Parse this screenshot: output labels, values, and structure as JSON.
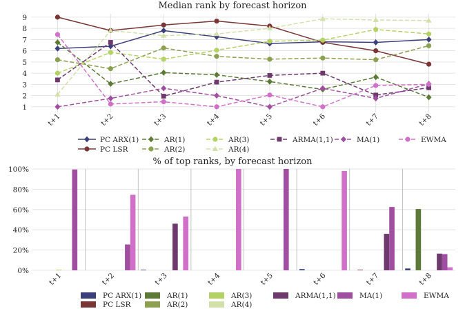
{
  "chart_data": [
    {
      "type": "line",
      "title": "Median rank by forecast horizon",
      "xlabel": "",
      "ylabel": "",
      "categories": [
        "t+1",
        "t+2",
        "t+3",
        "t+4",
        "t+5",
        "t+6",
        "t+7",
        "t+8"
      ],
      "ylim": [
        0.5,
        9.3
      ],
      "yticks": [
        1,
        2,
        3,
        4,
        5,
        6,
        7,
        8,
        9
      ],
      "grid": true,
      "legend_position": "bottom",
      "series": [
        {
          "key": "pc-arx1",
          "name": "PC ARX(1)",
          "color": "#3b3f7a",
          "dash": "",
          "marker": "diamond",
          "values": [
            6.2,
            6.4,
            7.8,
            7.25,
            6.65,
            6.8,
            6.75,
            7.0
          ]
        },
        {
          "key": "pc-lsr",
          "name": "PC LSR",
          "color": "#7a3535",
          "dash": "",
          "marker": "circle",
          "values": [
            9.0,
            7.8,
            8.3,
            8.65,
            8.2,
            6.75,
            6.0,
            4.8
          ]
        },
        {
          "key": "ar1",
          "name": "AR(1)",
          "color": "#5c7a35",
          "dash": "6,3",
          "marker": "diamond",
          "values": [
            6.75,
            3.05,
            4.05,
            3.85,
            3.25,
            2.55,
            3.65,
            1.85
          ]
        },
        {
          "key": "ar2",
          "name": "AR(2)",
          "color": "#8ca050",
          "dash": "6,3",
          "marker": "circle",
          "values": [
            5.2,
            4.4,
            6.25,
            5.5,
            5.25,
            5.35,
            5.2,
            6.45
          ]
        },
        {
          "key": "ar3",
          "name": "AR(3)",
          "color": "#b4d264",
          "dash": "6,3",
          "marker": "circle",
          "values": [
            4.0,
            5.85,
            5.25,
            6.05,
            6.85,
            6.95,
            7.9,
            7.5
          ]
        },
        {
          "key": "ar4",
          "name": "AR(4)",
          "color": "#d2e0aa",
          "dash": "6,3",
          "marker": "triangle",
          "values": [
            2.1,
            7.8,
            7.35,
            7.5,
            8.0,
            8.85,
            8.75,
            8.7
          ]
        },
        {
          "key": "arma11",
          "name": "ARMA(1,1)",
          "color": "#6e3a6e",
          "dash": "6,3",
          "marker": "square",
          "values": [
            3.4,
            6.75,
            1.95,
            3.2,
            3.8,
            4.0,
            2.05,
            2.7
          ]
        },
        {
          "key": "ma1",
          "name": "MA(1)",
          "color": "#a04fa0",
          "dash": "6,3",
          "marker": "diamond",
          "values": [
            1.0,
            1.75,
            2.65,
            2.0,
            1.0,
            2.65,
            1.75,
            3.05
          ]
        },
        {
          "key": "ewma",
          "name": "EWMA",
          "color": "#d070c8",
          "dash": "6,3",
          "marker": "circle",
          "values": [
            7.45,
            1.25,
            1.45,
            1.0,
            2.05,
            1.0,
            2.9,
            3.0
          ]
        }
      ]
    },
    {
      "type": "bar",
      "title": "% of top ranks, by forecast horizon",
      "xlabel": "",
      "ylabel": "",
      "categories": [
        "t+1",
        "t+2",
        "t+3",
        "t+4",
        "t+5",
        "t+6",
        "t+7",
        "t+8"
      ],
      "ylim": [
        0,
        100
      ],
      "yticks": [
        0,
        20,
        40,
        60,
        80,
        100
      ],
      "ytick_labels": [
        "0%",
        "20%",
        "40%",
        "60%",
        "80%",
        "100%"
      ],
      "grid": true,
      "legend_position": "bottom",
      "series": [
        {
          "key": "pc-arx1",
          "name": "PC ARX(1)",
          "color": "#3b3f7a",
          "values": [
            0,
            0,
            0.6,
            0,
            0,
            1.2,
            0,
            1.8
          ]
        },
        {
          "key": "pc-lsr",
          "name": "PC LSR",
          "color": "#7a3535",
          "values": [
            0,
            0,
            0,
            0,
            0,
            0,
            0.6,
            0
          ]
        },
        {
          "key": "ar1",
          "name": "AR(1)",
          "color": "#5c7a35",
          "values": [
            0,
            0,
            0,
            0,
            0,
            0,
            0,
            60.5
          ]
        },
        {
          "key": "ar2",
          "name": "AR(2)",
          "color": "#8ca050",
          "values": [
            0,
            0,
            0,
            0,
            0,
            0,
            0,
            0
          ]
        },
        {
          "key": "ar3",
          "name": "AR(3)",
          "color": "#b4d264",
          "values": [
            0.6,
            0,
            0,
            0,
            0,
            0,
            0,
            0
          ]
        },
        {
          "key": "ar4",
          "name": "AR(4)",
          "color": "#d2e0aa",
          "values": [
            0,
            0,
            0,
            0,
            0,
            0,
            0,
            0
          ]
        },
        {
          "key": "arma11",
          "name": "ARMA(1,1)",
          "color": "#6e3a6e",
          "values": [
            0,
            0,
            46.0,
            0,
            0,
            0,
            36.0,
            16.5
          ]
        },
        {
          "key": "ma1",
          "name": "MA(1)",
          "color": "#a04fa0",
          "values": [
            99.5,
            25.5,
            0,
            0,
            100,
            0,
            62.5,
            16.0
          ]
        },
        {
          "key": "ewma",
          "name": "EWMA",
          "color": "#d070c8",
          "values": [
            0,
            74.5,
            53.0,
            100,
            0,
            98.0,
            0,
            3.0
          ]
        }
      ]
    }
  ],
  "legend_order": [
    "pc-arx1",
    "ar1",
    "ar3",
    "arma11",
    "ma1",
    "ewma",
    "pc-lsr",
    "ar2",
    "ar4"
  ]
}
